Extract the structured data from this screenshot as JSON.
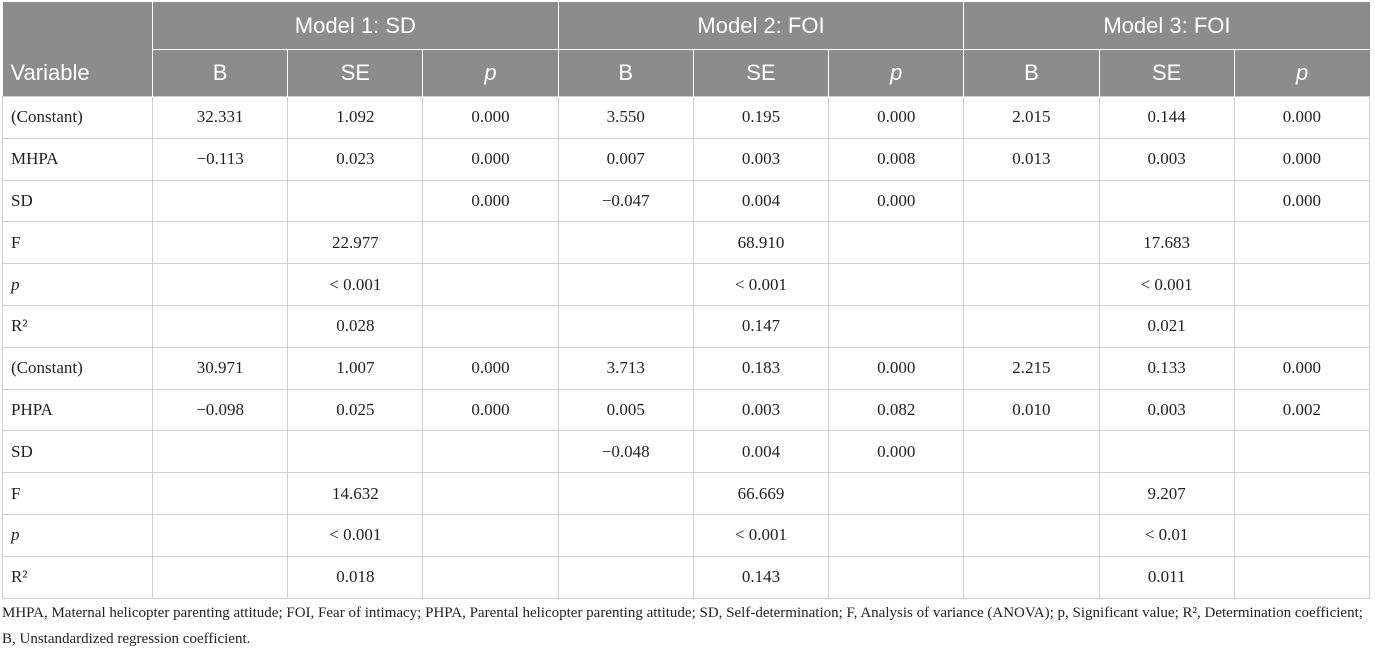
{
  "header": {
    "groups": [
      "Model 1: SD",
      "Model 2: FOI",
      "Model 3: FOI"
    ],
    "variable": "Variable",
    "columns": [
      "B",
      "SE",
      "p",
      "B",
      "SE",
      "p",
      "B",
      "SE",
      "p"
    ]
  },
  "table": {
    "rows": [
      [
        "(Constant)",
        "32.331",
        "1.092",
        "0.000",
        "3.550",
        "0.195",
        "0.000",
        "2.015",
        "0.144",
        "0.000"
      ],
      [
        "MHPA",
        "−0.113",
        "0.023",
        "0.000",
        "0.007",
        "0.003",
        "0.008",
        "0.013",
        "0.003",
        "0.000"
      ],
      [
        "SD",
        null,
        null,
        "0.000",
        "−0.047",
        "0.004",
        "0.000",
        null,
        null,
        "0.000"
      ],
      [
        "F",
        null,
        "22.977",
        null,
        null,
        "68.910",
        null,
        null,
        "17.683",
        null
      ],
      [
        "p",
        null,
        "< 0.001",
        null,
        null,
        "< 0.001",
        null,
        null,
        "< 0.001",
        null
      ],
      [
        "R²",
        null,
        "0.028",
        null,
        null,
        "0.147",
        null,
        null,
        "0.021",
        null
      ],
      [
        "(Constant)",
        "30.971",
        "1.007",
        "0.000",
        "3.713",
        "0.183",
        "0.000",
        "2.215",
        "0.133",
        "0.000"
      ],
      [
        "PHPA",
        "−0.098",
        "0.025",
        "0.000",
        "0.005",
        "0.003",
        "0.082",
        "0.010",
        "0.003",
        "0.002"
      ],
      [
        "SD",
        null,
        null,
        null,
        "−0.048",
        "0.004",
        "0.000",
        null,
        null,
        null
      ],
      [
        "F",
        null,
        "14.632",
        null,
        null,
        "66.669",
        null,
        null,
        "9.207",
        null
      ],
      [
        "p",
        null,
        "< 0.001",
        null,
        null,
        "< 0.001",
        null,
        null,
        "< 0.01",
        null
      ],
      [
        "R²",
        null,
        "0.018",
        null,
        null,
        "0.143",
        null,
        null,
        "0.011",
        null
      ]
    ]
  },
  "footnote": "MHPA, Maternal helicopter parenting attitude; FOI, Fear of intimacy; PHPA, Parental helicopter parenting attitude; SD, Self-determination; F, Analysis of variance (ANOVA); p, Significant value; R², Determination coefficient; B, Unstandardized regression coefficient."
}
